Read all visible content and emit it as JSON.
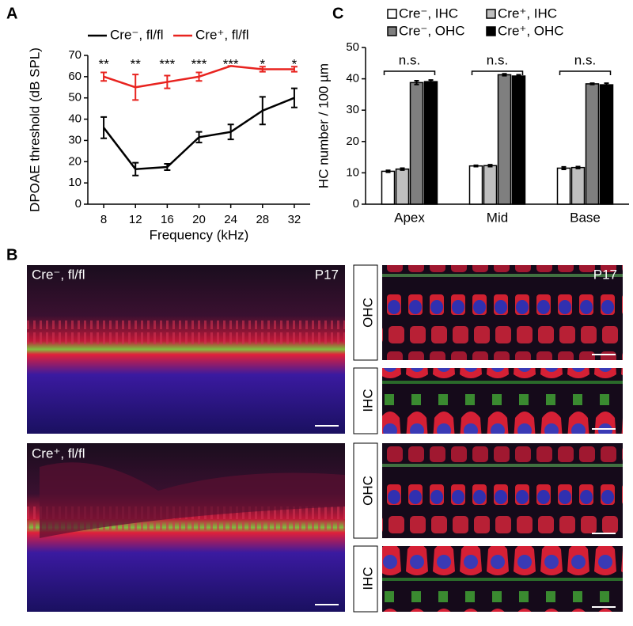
{
  "figure": {
    "panel_labels": [
      "A",
      "B",
      "C"
    ]
  },
  "chart_data": [
    {
      "type": "line",
      "x_label": "Frequency (kHz)",
      "y_label": "DPOAE threshold (dB SPL)",
      "x": [
        8,
        12,
        16,
        20,
        24,
        28,
        32
      ],
      "xlim": [
        6,
        34
      ],
      "xticks": [
        8,
        12,
        16,
        20,
        24,
        28,
        32
      ],
      "ylim": [
        0,
        70
      ],
      "yticks": [
        0,
        10,
        20,
        30,
        40,
        50,
        60,
        70
      ],
      "series": [
        {
          "name": "Cre⁻, fl/fl",
          "color": "#000000",
          "values": [
            36,
            16.5,
            17.5,
            31.5,
            34,
            44,
            50
          ],
          "errors": [
            5,
            3,
            1.5,
            2.5,
            3.5,
            6.5,
            4.5
          ]
        },
        {
          "name": "Cre⁺, fl/fl",
          "color": "#e8231f",
          "values": [
            60,
            55,
            57.5,
            60,
            65,
            63.5,
            63.5
          ],
          "errors": [
            2,
            6,
            3,
            2,
            0,
            1.2,
            1.2
          ]
        }
      ],
      "annotations": [
        "**",
        "**",
        "***",
        "***",
        "***",
        "*",
        "*"
      ]
    },
    {
      "type": "bar",
      "y_label": "HC number / 100 µm",
      "categories": [
        "Apex",
        "Mid",
        "Base"
      ],
      "ylim": [
        0,
        50
      ],
      "yticks": [
        0,
        10,
        20,
        30,
        40,
        50
      ],
      "series": [
        {
          "name": "Cre⁻, IHC",
          "color": "#ffffff",
          "values": [
            10.5,
            12.2,
            11.5
          ],
          "errors": [
            0.3,
            0.2,
            0.4
          ]
        },
        {
          "name": "Cre⁺, IHC",
          "color": "#bfbfbf",
          "values": [
            11.2,
            12.3,
            11.7
          ],
          "errors": [
            0.3,
            0.3,
            0.3
          ]
        },
        {
          "name": "Cre⁻, OHC",
          "color": "#7f7f7f",
          "values": [
            38.8,
            41.3,
            38.4
          ],
          "errors": [
            0.6,
            0.3,
            0.2
          ]
        },
        {
          "name": "Cre⁺, OHC",
          "color": "#000000",
          "values": [
            39.1,
            40.9,
            38.1
          ],
          "errors": [
            0.5,
            0.4,
            0.5
          ]
        }
      ],
      "annotations": [
        "n.s.",
        "n.s.",
        "n.s."
      ]
    }
  ],
  "panel_b": {
    "left": [
      {
        "label": "Cre⁻, fl/fl",
        "age": "P17"
      },
      {
        "label": "Cre⁺, fl/fl"
      }
    ],
    "right": [
      {
        "label": "OHC",
        "age": "P17"
      },
      {
        "label": "IHC"
      },
      {
        "label": "OHC"
      },
      {
        "label": "IHC"
      }
    ]
  }
}
